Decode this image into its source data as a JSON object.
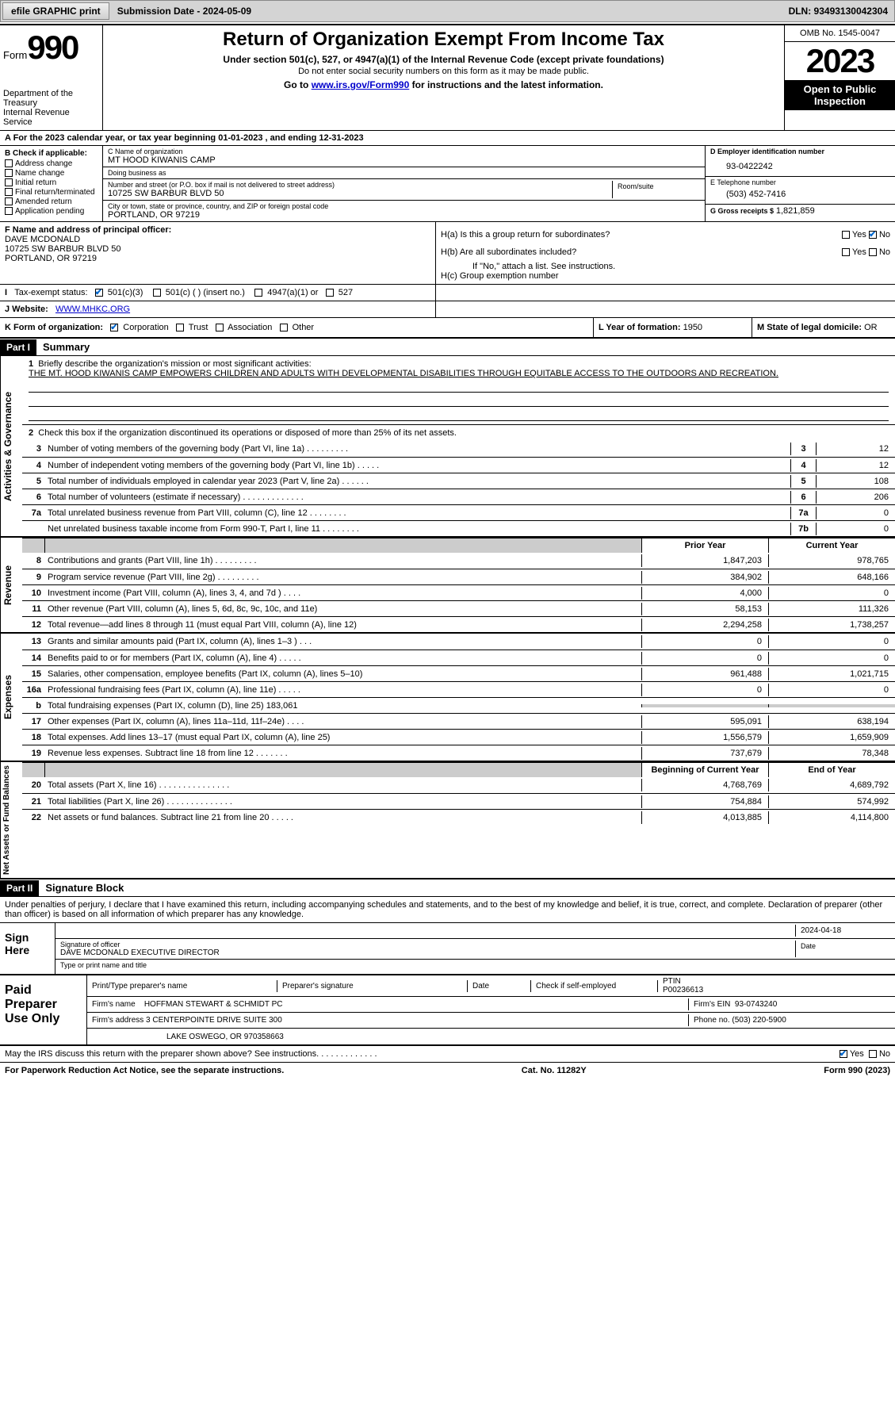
{
  "toolbar": {
    "efile_label": "efile GRAPHIC print",
    "submission_label": "Submission Date - 2024-05-09",
    "dln_label": "DLN: 93493130042304"
  },
  "header": {
    "form_label": "Form",
    "form_number": "990",
    "title": "Return of Organization Exempt From Income Tax",
    "subtitle": "Under section 501(c), 527, or 4947(a)(1) of the Internal Revenue Code (except private foundations)",
    "note": "Do not enter social security numbers on this form as it may be made public.",
    "goto_prefix": "Go to ",
    "goto_link": "www.irs.gov/Form990",
    "goto_suffix": " for instructions and the latest information.",
    "dept1": "Department of the Treasury",
    "dept2": "Internal Revenue Service",
    "omb": "OMB No. 1545-0047",
    "year": "2023",
    "pubinsp": "Open to Public Inspection"
  },
  "rowA": {
    "prefix": "A For the 2023 calendar year, or tax year beginning ",
    "begin": "01-01-2023",
    "mid": " , and ending ",
    "end": "12-31-2023"
  },
  "sectionB": {
    "heading": "B Check if applicable:",
    "opts": [
      "Address change",
      "Name change",
      "Initial return",
      "Final return/terminated",
      "Amended return",
      "Application pending"
    ]
  },
  "sectionC": {
    "name_lbl": "C Name of organization",
    "name": "MT HOOD KIWANIS CAMP",
    "dba_lbl": "Doing business as",
    "dba": "",
    "addr_lbl": "Number and street (or P.O. box if mail is not delivered to street address)",
    "addr": "10725 SW BARBUR BLVD 50",
    "room_lbl": "Room/suite",
    "room": "",
    "city_lbl": "City or town, state or province, country, and ZIP or foreign postal code",
    "city": "PORTLAND, OR  97219"
  },
  "sectionD": {
    "lbl": "D Employer identification number",
    "val": "93-0422242"
  },
  "sectionE": {
    "lbl": "E Telephone number",
    "val": "(503) 452-7416"
  },
  "sectionG": {
    "lbl": "G Gross receipts $",
    "val": "1,821,859"
  },
  "sectionF": {
    "lbl": "F  Name and address of principal officer:",
    "name": "DAVE MCDONALD",
    "addr1": "10725 SW BARBUR BLVD 50",
    "addr2": "PORTLAND, OR  97219"
  },
  "sectionH": {
    "a": "H(a)  Is this a group return for subordinates?",
    "b": "H(b)  Are all subordinates included?",
    "b_note": "If \"No,\" attach a list. See instructions.",
    "c": "H(c)  Group exemption number",
    "yes": "Yes",
    "no": "No"
  },
  "rowI": {
    "lbl": "Tax-exempt status:",
    "opts": [
      "501(c)(3)",
      "501(c) (  ) (insert no.)",
      "4947(a)(1) or",
      "527"
    ],
    "checked": 0
  },
  "rowJ": {
    "lbl": "J   Website:",
    "val": "WWW.MHKC.ORG"
  },
  "rowK": {
    "lbl": "K Form of organization:",
    "opts": [
      "Corporation",
      "Trust",
      "Association",
      "Other"
    ],
    "checked": 0,
    "L_lbl": "L Year of formation:",
    "L_val": "1950",
    "M_lbl": "M State of legal domicile:",
    "M_val": "OR"
  },
  "partI": {
    "label": "Part I",
    "title": "Summary",
    "side_gov": "Activities & Governance",
    "side_rev": "Revenue",
    "side_exp": "Expenses",
    "side_net": "Net Assets or Fund Balances",
    "q1_lbl": "1",
    "q1_text": "Briefly describe the organization's mission or most significant activities:",
    "q1_val": "THE MT. HOOD KIWANIS CAMP EMPOWERS CHILDREN AND ADULTS WITH DEVELOPMENTAL DISABILITIES THROUGH EQUITABLE ACCESS TO THE OUTDOORS AND RECREATION.",
    "q2_lbl": "2",
    "q2_text": "Check this box      if the organization discontinued its operations or disposed of more than 25% of its net assets.",
    "gov_lines": [
      {
        "n": "3",
        "d": "Number of voting members of the governing body (Part VI, line 1a)   .    .    .    .    .    .    .    .    .",
        "b": "3",
        "v": "12"
      },
      {
        "n": "4",
        "d": "Number of independent voting members of the governing body (Part VI, line 1b)    .    .    .    .    .",
        "b": "4",
        "v": "12"
      },
      {
        "n": "5",
        "d": "Total number of individuals employed in calendar year 2023 (Part V, line 2a)    .    .    .    .    .    .",
        "b": "5",
        "v": "108"
      },
      {
        "n": "6",
        "d": "Total number of volunteers (estimate if necessary)    .    .    .    .    .    .    .    .    .    .    .    .    .",
        "b": "6",
        "v": "206"
      },
      {
        "n": "7a",
        "d": "Total unrelated business revenue from Part VIII, column (C), line 12    .    .    .    .    .    .    .    .",
        "b": "7a",
        "v": "0"
      },
      {
        "n": "",
        "d": "Net unrelated business taxable income from Form 990-T, Part I, line 11    .    .    .    .    .    .    .    .",
        "b": "7b",
        "v": "0"
      }
    ],
    "prior_hdr": "Prior Year",
    "curr_hdr": "Current Year",
    "rev_lines": [
      {
        "n": "8",
        "d": "Contributions and grants (Part VIII, line 1h)    .    .    .    .    .    .    .    .    .",
        "p": "1,847,203",
        "c": "978,765"
      },
      {
        "n": "9",
        "d": "Program service revenue (Part VIII, line 2g)    .    .    .    .    .    .    .    .    .",
        "p": "384,902",
        "c": "648,166"
      },
      {
        "n": "10",
        "d": "Investment income (Part VIII, column (A), lines 3, 4, and 7d )    .    .    .    .",
        "p": "4,000",
        "c": "0"
      },
      {
        "n": "11",
        "d": "Other revenue (Part VIII, column (A), lines 5, 6d, 8c, 9c, 10c, and 11e)",
        "p": "58,153",
        "c": "111,326"
      },
      {
        "n": "12",
        "d": "Total revenue—add lines 8 through 11 (must equal Part VIII, column (A), line 12)",
        "p": "2,294,258",
        "c": "1,738,257"
      }
    ],
    "exp_lines": [
      {
        "n": "13",
        "d": "Grants and similar amounts paid (Part IX, column (A), lines 1–3 )    .    .    .",
        "p": "0",
        "c": "0"
      },
      {
        "n": "14",
        "d": "Benefits paid to or for members (Part IX, column (A), line 4)    .    .    .    .    .",
        "p": "0",
        "c": "0"
      },
      {
        "n": "15",
        "d": "Salaries, other compensation, employee benefits (Part IX, column (A), lines 5–10)",
        "p": "961,488",
        "c": "1,021,715"
      },
      {
        "n": "16a",
        "d": "Professional fundraising fees (Part IX, column (A), line 11e)    .    .    .    .    .",
        "p": "0",
        "c": "0"
      },
      {
        "n": "b",
        "d": "Total fundraising expenses (Part IX, column (D), line 25) 183,061",
        "p": "",
        "c": "",
        "shade": true
      },
      {
        "n": "17",
        "d": "Other expenses (Part IX, column (A), lines 11a–11d, 11f–24e)    .    .    .    .",
        "p": "595,091",
        "c": "638,194"
      },
      {
        "n": "18",
        "d": "Total expenses. Add lines 13–17 (must equal Part IX, column (A), line 25)",
        "p": "1,556,579",
        "c": "1,659,909"
      },
      {
        "n": "19",
        "d": "Revenue less expenses. Subtract line 18 from line 12    .    .    .    .    .    .    .",
        "p": "737,679",
        "c": "78,348"
      }
    ],
    "net_hdr_p": "Beginning of Current Year",
    "net_hdr_c": "End of Year",
    "net_lines": [
      {
        "n": "20",
        "d": "Total assets (Part X, line 16)    .    .    .    .    .    .    .    .    .    .    .    .    .    .    .",
        "p": "4,768,769",
        "c": "4,689,792"
      },
      {
        "n": "21",
        "d": "Total liabilities (Part X, line 26)    .    .    .    .    .    .    .    .    .    .    .    .    .    .",
        "p": "754,884",
        "c": "574,992"
      },
      {
        "n": "22",
        "d": "Net assets or fund balances. Subtract line 21 from line 20    .    .    .    .    .",
        "p": "4,013,885",
        "c": "4,114,800"
      }
    ]
  },
  "partII": {
    "label": "Part II",
    "title": "Signature Block",
    "decl": "Under penalties of perjury, I declare that I have examined this return, including accompanying schedules and statements, and to the best of my knowledge and belief, it is true, correct, and complete. Declaration of preparer (other than officer) is based on all information of which preparer has any knowledge.",
    "sign_here": "Sign Here",
    "sig_officer_lbl": "Signature of officer",
    "sig_name": "DAVE MCDONALD  EXECUTIVE DIRECTOR",
    "sig_title_lbl": "Type or print name and title",
    "date_lbl": "Date",
    "date_val": "2024-04-18",
    "paid_lbl": "Paid Preparer Use Only",
    "prep_name_lbl": "Print/Type preparer's name",
    "prep_sig_lbl": "Preparer's signature",
    "prep_date_lbl": "Date",
    "prep_check_lbl": "Check       if self-employed",
    "ptin_lbl": "PTIN",
    "ptin_val": "P00236613",
    "firm_name_lbl": "Firm's name",
    "firm_name": "HOFFMAN STEWART & SCHMIDT PC",
    "firm_ein_lbl": "Firm's EIN",
    "firm_ein": "93-0743240",
    "firm_addr_lbl": "Firm's address",
    "firm_addr1": "3 CENTERPOINTE DRIVE SUITE 300",
    "firm_addr2": "LAKE OSWEGO, OR  970358663",
    "phone_lbl": "Phone no.",
    "phone_val": "(503) 220-5900",
    "discuss": "May the IRS discuss this return with the preparer shown above? See instructions.    .    .    .    .    .    .    .    .    .    .    .    .",
    "yes": "Yes",
    "no": "No"
  },
  "footer": {
    "left": "For Paperwork Reduction Act Notice, see the separate instructions.",
    "mid": "Cat. No. 11282Y",
    "right": "Form 990 (2023)"
  }
}
